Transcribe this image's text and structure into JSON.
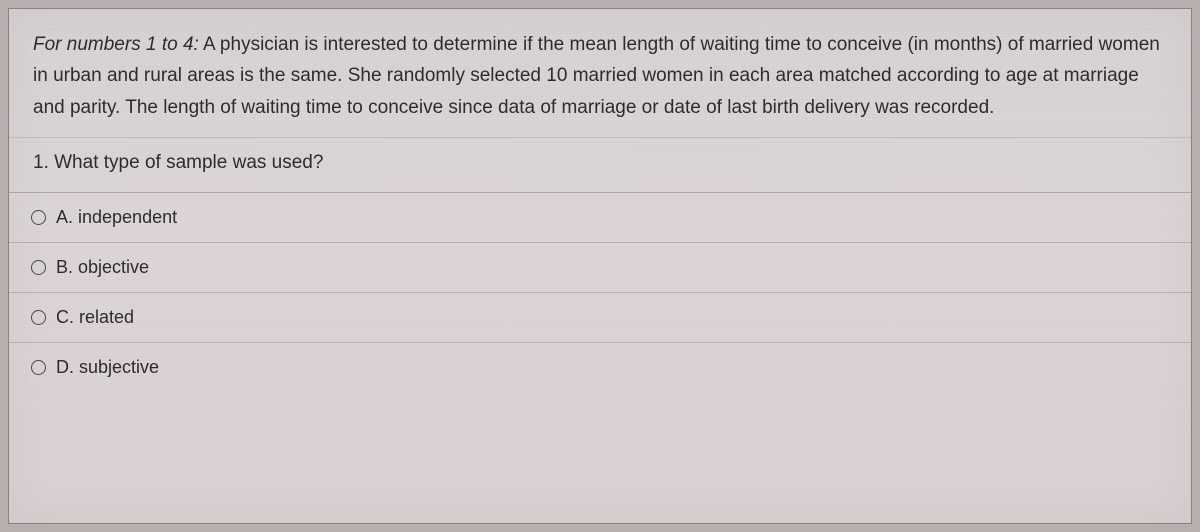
{
  "card": {
    "background_color": "#dad3d5",
    "border_color": "#8a8280",
    "text_color": "#2e2a2a",
    "font_size_body": 19,
    "font_size_choice": 18
  },
  "stem": {
    "context_prefix": "For numbers 1 to 4:",
    "context_body": " A physician is interested to determine if the mean length of waiting time to conceive (in months) of married women in urban and rural areas is the same. She randomly selected 10 married women in each area matched according to age at marriage and parity. The length of waiting time to conceive since data of marriage or date of last birth delivery was recorded.",
    "question": "1. What type of sample was used?"
  },
  "choices": [
    {
      "label": "A. independent"
    },
    {
      "label": "B. objective"
    },
    {
      "label": "C. related"
    },
    {
      "label": "D. subjective"
    }
  ]
}
